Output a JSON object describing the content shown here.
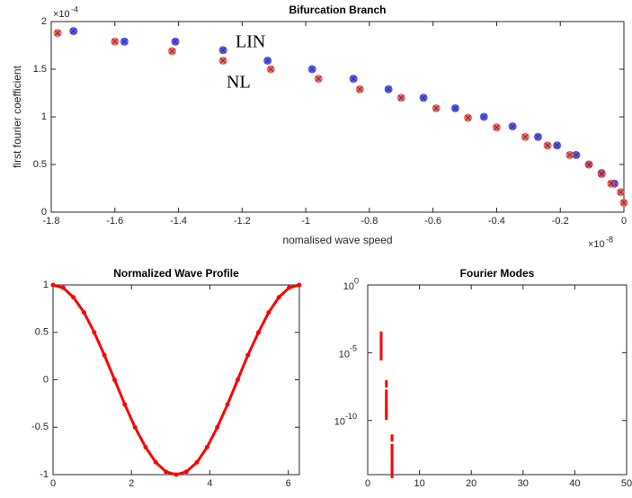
{
  "chart_data": [
    {
      "type": "scatter",
      "title": "Bifurcation Branch",
      "x_label": "nomalised wave speed",
      "y_label": "first fourier coefficient",
      "x_multiplier": {
        "base": "×10",
        "exponent": "-8"
      },
      "y_multiplier": {
        "base": "×10",
        "exponent": "-4"
      },
      "xlim": [
        -1.8,
        0
      ],
      "ylim": [
        0,
        2
      ],
      "xticks": [
        -1.8,
        -1.6,
        -1.4,
        -1.2,
        -1,
        -0.8,
        -0.6,
        -0.4,
        -0.2,
        0
      ],
      "yticks": [
        0,
        0.5,
        1,
        1.5,
        2
      ],
      "series": [
        {
          "name": "LIN",
          "color": "#3a3aff",
          "x": [
            -1.73,
            -1.57,
            -1.41,
            -1.26,
            -1.12,
            -0.98,
            -0.85,
            -0.74,
            -0.63,
            -0.53,
            -0.44,
            -0.35,
            -0.27,
            -0.21,
            -0.15,
            -0.11,
            -0.07,
            -0.03
          ],
          "values": [
            1.9,
            1.79,
            1.79,
            1.7,
            1.59,
            1.5,
            1.4,
            1.29,
            1.2,
            1.09,
            1.0,
            0.9,
            0.79,
            0.7,
            0.6,
            0.5,
            0.41,
            0.3
          ]
        },
        {
          "name": "NL",
          "color": "#ff4a4a",
          "x": [
            -1.78,
            -1.6,
            -1.42,
            -1.26,
            -1.11,
            -0.96,
            -0.83,
            -0.7,
            -0.59,
            -0.49,
            -0.4,
            -0.31,
            -0.24,
            -0.17,
            -0.11,
            -0.07,
            -0.04,
            -0.01,
            0
          ],
          "values": [
            1.88,
            1.79,
            1.69,
            1.59,
            1.5,
            1.4,
            1.29,
            1.2,
            1.09,
            0.99,
            0.89,
            0.79,
            0.7,
            0.6,
            0.5,
            0.4,
            0.3,
            0.21,
            0.1
          ]
        }
      ]
    },
    {
      "type": "line",
      "title": "Normalized Wave Profile",
      "xlim": [
        0,
        6.2832
      ],
      "ylim": [
        -1,
        1
      ],
      "xticks": [
        0,
        2,
        4,
        6
      ],
      "yticks": [
        -1,
        -0.5,
        0,
        0.5,
        1
      ],
      "color": "#ff0000",
      "x": [
        0,
        0.26,
        0.52,
        0.79,
        1.05,
        1.31,
        1.57,
        1.83,
        2.09,
        2.36,
        2.62,
        2.88,
        3.14,
        3.4,
        3.67,
        3.93,
        4.19,
        4.45,
        4.71,
        4.97,
        5.24,
        5.5,
        5.76,
        6.02,
        6.28
      ],
      "values": [
        1,
        0.97,
        0.87,
        0.71,
        0.5,
        0.26,
        0,
        -0.26,
        -0.5,
        -0.71,
        -0.87,
        -0.97,
        -1,
        -0.97,
        -0.87,
        -0.71,
        -0.5,
        -0.26,
        0,
        0.26,
        0.5,
        0.71,
        0.87,
        0.97,
        1
      ]
    },
    {
      "type": "scatter",
      "title": "Fourier Modes",
      "log_y": true,
      "xlim": [
        0,
        50
      ],
      "ylim": [
        1e-14,
        1
      ],
      "xticks": [
        0,
        10,
        20,
        30,
        40,
        50
      ],
      "yticks": [
        {
          "value": 1,
          "label": "10",
          "exponent": "0"
        },
        {
          "value": 1e-05,
          "label": "10",
          "exponent": "-5"
        },
        {
          "value": 1e-10,
          "label": "10",
          "exponent": "-10"
        }
      ],
      "color": "#ff0000",
      "x": [
        2.6,
        2.6,
        2.6,
        2.6,
        2.6,
        2.6,
        3.6,
        3.6,
        3.6,
        3.6,
        3.6,
        3.6,
        4.7,
        4.7,
        4.7,
        4.7,
        4.7,
        4.7
      ],
      "values": [
        0.0002,
        0.0001,
        5e-05,
        2e-05,
        1e-05,
        5e-06,
        5e-08,
        1e-08,
        3e-09,
        1e-09,
        4e-10,
        2e-10,
        5e-12,
        1e-12,
        3e-13,
        1e-13,
        3e-14,
        1e-14
      ]
    }
  ]
}
